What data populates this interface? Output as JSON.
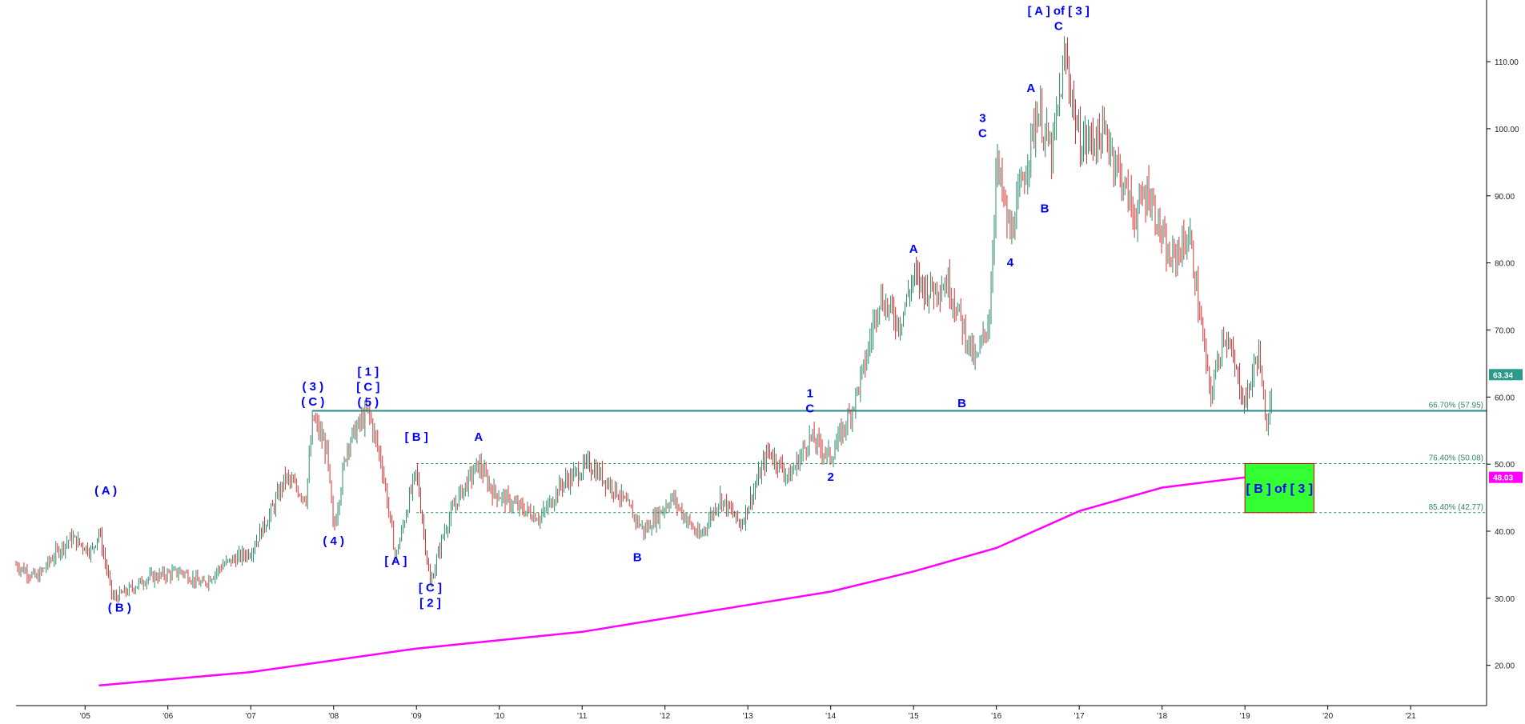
{
  "chart_data": {
    "type": "line",
    "subtype": "ohlc-price-chart",
    "title": "",
    "xlabel": "",
    "ylabel": "",
    "xlim": [
      "2004-03",
      "2021-12"
    ],
    "ylim": [
      14,
      118
    ],
    "grid": false,
    "legend": "none",
    "x_ticks": [
      "'05",
      "'06",
      "'07",
      "'08",
      "'09",
      "'10",
      "'11",
      "'12",
      "'13",
      "'14",
      "'15",
      "'16",
      "'17",
      "'18",
      "'19",
      "'20",
      "'21"
    ],
    "y_ticks": [
      "20.00",
      "30.00",
      "40.00",
      "50.00",
      "60.00",
      "70.00",
      "80.00",
      "90.00",
      "100.00",
      "110.00"
    ],
    "price_series": {
      "name": "",
      "color": "#2a7a6a",
      "points": [
        [
          "2004-03",
          35
        ],
        [
          "2004-06",
          33
        ],
        [
          "2004-09",
          37
        ],
        [
          "2004-11",
          39
        ],
        [
          "2005-02",
          37
        ],
        [
          "2005-03",
          40
        ],
        [
          "2005-05",
          30
        ],
        [
          "2005-07",
          31
        ],
        [
          "2005-10",
          33
        ],
        [
          "2006-03",
          34
        ],
        [
          "2006-06",
          32
        ],
        [
          "2006-09",
          35
        ],
        [
          "2007-01",
          37
        ],
        [
          "2007-04",
          43
        ],
        [
          "2007-06",
          48
        ],
        [
          "2007-09",
          45
        ],
        [
          "2007-10",
          57
        ],
        [
          "2007-12",
          52
        ],
        [
          "2008-01",
          40
        ],
        [
          "2008-03",
          53
        ],
        [
          "2008-06",
          58
        ],
        [
          "2008-08",
          50
        ],
        [
          "2008-10",
          36
        ],
        [
          "2008-12",
          45
        ],
        [
          "2009-01",
          49
        ],
        [
          "2009-03",
          32
        ],
        [
          "2009-05",
          40
        ],
        [
          "2009-07",
          45
        ],
        [
          "2009-10",
          50
        ],
        [
          "2009-12",
          46
        ],
        [
          "2010-03",
          44
        ],
        [
          "2010-07",
          42
        ],
        [
          "2010-10",
          47
        ],
        [
          "2011-02",
          50
        ],
        [
          "2011-06",
          46
        ],
        [
          "2011-10",
          40
        ],
        [
          "2012-02",
          45
        ],
        [
          "2012-06",
          39
        ],
        [
          "2012-09",
          45
        ],
        [
          "2012-12",
          41
        ],
        [
          "2013-04",
          52
        ],
        [
          "2013-07",
          48
        ],
        [
          "2013-10",
          54
        ],
        [
          "2014-01",
          51
        ],
        [
          "2014-04",
          58
        ],
        [
          "2014-06",
          65
        ],
        [
          "2014-08",
          75
        ],
        [
          "2014-11",
          71
        ],
        [
          "2015-01",
          78
        ],
        [
          "2015-03",
          76
        ],
        [
          "2015-06",
          77
        ],
        [
          "2015-10",
          65
        ],
        [
          "2015-12",
          72
        ],
        [
          "2016-01",
          95
        ],
        [
          "2016-03",
          84
        ],
        [
          "2016-05",
          93
        ],
        [
          "2016-07",
          103
        ],
        [
          "2016-09",
          96
        ],
        [
          "2016-11",
          111
        ],
        [
          "2017-01",
          98
        ],
        [
          "2017-05",
          99
        ],
        [
          "2017-09",
          87
        ],
        [
          "2017-11",
          91
        ],
        [
          "2018-02",
          80
        ],
        [
          "2018-05",
          84
        ],
        [
          "2018-08",
          60
        ],
        [
          "2018-10",
          70
        ],
        [
          "2019-01",
          59
        ],
        [
          "2019-03",
          67
        ],
        [
          "2019-04",
          55
        ],
        [
          "2019-05",
          63.34
        ]
      ]
    },
    "ma_series": {
      "name": "",
      "color": "#ff00ff",
      "points": [
        [
          "2005-03",
          17
        ],
        [
          "2007-01",
          19
        ],
        [
          "2009-01",
          22.5
        ],
        [
          "2011-01",
          25
        ],
        [
          "2013-01",
          29
        ],
        [
          "2014-01",
          31
        ],
        [
          "2015-01",
          34
        ],
        [
          "2016-01",
          37.5
        ],
        [
          "2017-01",
          43
        ],
        [
          "2018-01",
          46.5
        ],
        [
          "2019-01",
          48.03
        ]
      ]
    },
    "horizontal_lines": [
      {
        "value": 57.95,
        "label": "66.70% (57.95)",
        "style": "solid",
        "color": "#2a8a8a"
      },
      {
        "value": 50.08,
        "label": "76.40% (50.08)",
        "style": "dashed",
        "color": "#2e8b57"
      },
      {
        "value": 42.77,
        "label": "85.40% (42.77)",
        "style": "dashed",
        "color": "#2e8b57"
      }
    ],
    "price_badges": [
      {
        "value": 63.34,
        "text": "63.34",
        "color": "#2a9a8a"
      },
      {
        "value": 48.03,
        "text": "48.03",
        "color": "#ff00ff"
      }
    ],
    "target_box": {
      "x_start": "2019-01",
      "x_end": "2019-11",
      "y_top": 50.08,
      "y_bottom": 42.77,
      "fill": "#33ff33",
      "border": "#cc0000",
      "text": "[ B ] of [ 3 ]"
    },
    "annotations": [
      {
        "x": "2005-04",
        "y": 45.5,
        "lines": [
          "( A )"
        ]
      },
      {
        "x": "2005-06",
        "y": 28.0,
        "lines": [
          "( B )"
        ]
      },
      {
        "x": "2007-10",
        "y": 61.0,
        "lines": [
          "( 3 )",
          "( C )"
        ]
      },
      {
        "x": "2008-01",
        "y": 38.0,
        "lines": [
          "( 4 )"
        ]
      },
      {
        "x": "2008-06",
        "y": 63.2,
        "lines": [
          "[ 1 ]",
          "[ C ]",
          "( 5 )"
        ]
      },
      {
        "x": "2008-10",
        "y": 35.0,
        "lines": [
          "[ A ]"
        ]
      },
      {
        "x": "2009-01",
        "y": 53.5,
        "lines": [
          "[ B ]"
        ]
      },
      {
        "x": "2009-03",
        "y": 31.0,
        "lines": [
          "[ C ]",
          "[ 2 ]"
        ]
      },
      {
        "x": "2009-10",
        "y": 53.5,
        "lines": [
          "A"
        ]
      },
      {
        "x": "2011-09",
        "y": 35.5,
        "lines": [
          "B"
        ]
      },
      {
        "x": "2013-10",
        "y": 60.0,
        "lines": [
          "1",
          "C"
        ]
      },
      {
        "x": "2014-01",
        "y": 47.5,
        "lines": [
          "2"
        ]
      },
      {
        "x": "2015-01",
        "y": 81.5,
        "lines": [
          "A"
        ]
      },
      {
        "x": "2015-08",
        "y": 58.5,
        "lines": [
          "B"
        ]
      },
      {
        "x": "2015-11",
        "y": 101.0,
        "lines": [
          "3",
          "C"
        ]
      },
      {
        "x": "2016-03",
        "y": 79.5,
        "lines": [
          "4"
        ]
      },
      {
        "x": "2016-06",
        "y": 105.5,
        "lines": [
          "A"
        ]
      },
      {
        "x": "2016-08",
        "y": 87.5,
        "lines": [
          "B"
        ]
      },
      {
        "x": "2016-10",
        "y": 117.0,
        "lines": [
          "[ A ] of [ 3 ]",
          "C"
        ]
      }
    ]
  }
}
